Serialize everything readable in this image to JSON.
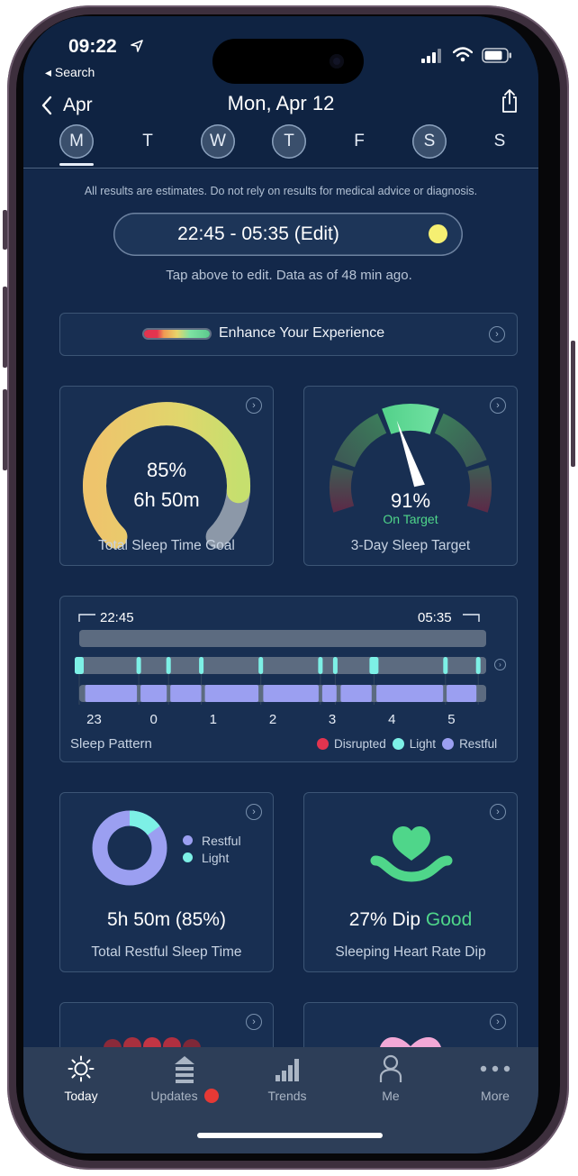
{
  "status_bar": {
    "time": "09:22",
    "back_app": "◂ Search"
  },
  "nav": {
    "back_label": "Apr",
    "date_title": "Mon, Apr 12"
  },
  "week": {
    "days": [
      {
        "label": "M",
        "state": "selected"
      },
      {
        "label": "T",
        "state": "plain"
      },
      {
        "label": "W",
        "state": "circled"
      },
      {
        "label": "T",
        "state": "circled"
      },
      {
        "label": "F",
        "state": "plain"
      },
      {
        "label": "S",
        "state": "circled"
      },
      {
        "label": "S",
        "state": "plain"
      }
    ]
  },
  "disclaimer": "All results are estimates. Do not rely on results for medical advice or diagnosis.",
  "sleep_window": {
    "label": "22:45 - 05:35 (Edit)",
    "hint": "Tap above to edit. Data as of 48 min ago."
  },
  "enhance": {
    "label": "Enhance Your Experience"
  },
  "total_sleep_goal": {
    "percent": "85%",
    "duration": "6h 50m",
    "caption": "Total Sleep Time Goal",
    "fill_fraction": 0.85
  },
  "three_day_target": {
    "percent": "91%",
    "status": "On Target",
    "caption": "3-Day Sleep Target",
    "needle_value": 0.91
  },
  "sleep_pattern": {
    "start": "22:45",
    "end": "05:35",
    "hours": [
      "23",
      "0",
      "1",
      "2",
      "3",
      "4",
      "5"
    ],
    "caption": "Sleep Pattern",
    "legend": [
      {
        "label": "Disrupted",
        "color": "#e2344f"
      },
      {
        "label": "Light",
        "color": "#7df0e6"
      },
      {
        "label": "Restful",
        "color": "#9b9ff1"
      }
    ]
  },
  "restful_sleep": {
    "value": "5h 50m (85%)",
    "caption": "Total Restful Sleep Time",
    "legend": [
      {
        "label": "Restful",
        "color": "#9b9ff1"
      },
      {
        "label": "Light",
        "color": "#7df0e6"
      }
    ],
    "restful_fraction": 0.85
  },
  "hr_dip": {
    "value": "27% Dip",
    "rating": "Good",
    "caption": "Sleeping Heart Rate Dip"
  },
  "tabs": [
    {
      "label": "Today",
      "icon": "sun-icon",
      "active": true
    },
    {
      "label": "Updates",
      "icon": "updates-icon",
      "active": false
    },
    {
      "label": "Trends",
      "icon": "bars-icon",
      "active": false
    },
    {
      "label": "Me",
      "icon": "person-icon",
      "active": false
    },
    {
      "label": "More",
      "icon": "more-dots-icon",
      "active": false
    }
  ],
  "colors": {
    "accent_green": "#4fd68a",
    "light": "#7df0e6",
    "restful": "#9b9ff1",
    "disrupted": "#e2344f",
    "sun": "#f5ef72",
    "badge": "#e53935"
  }
}
